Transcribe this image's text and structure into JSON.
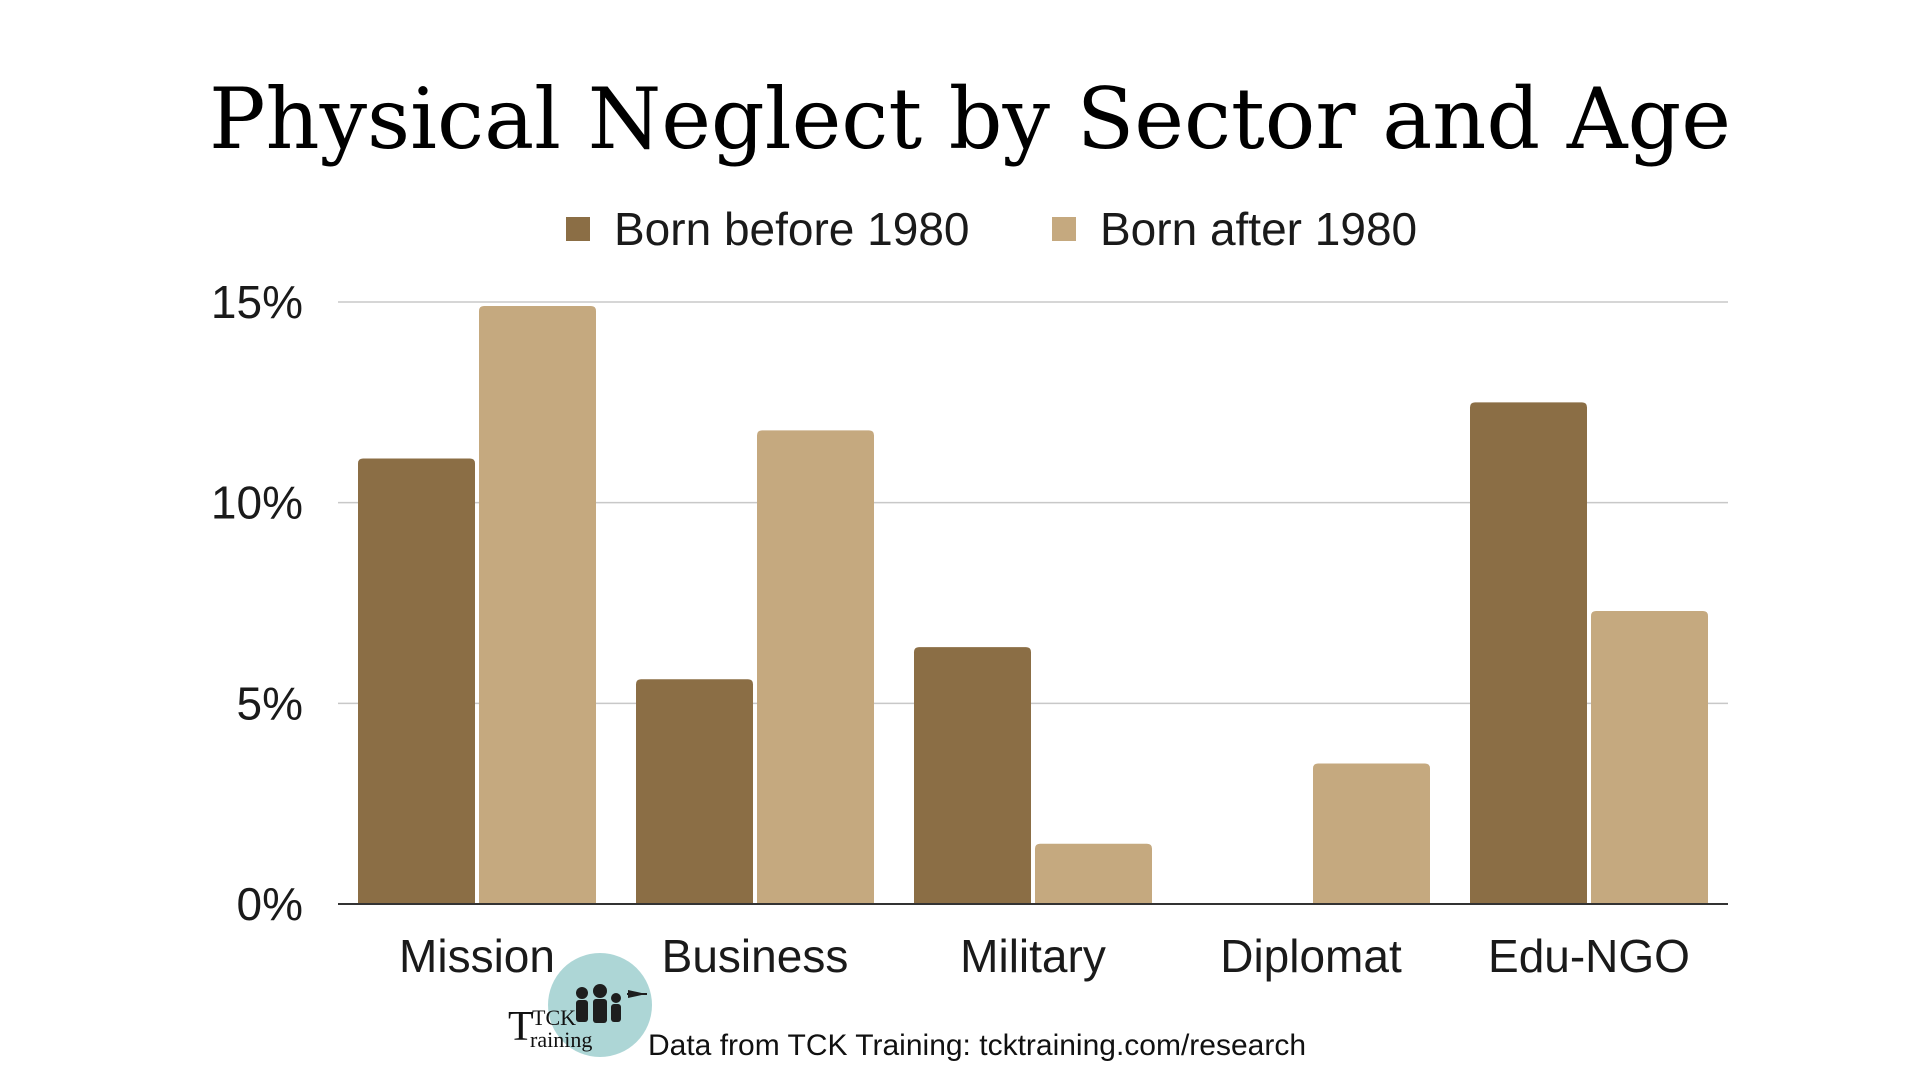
{
  "chart_data": {
    "type": "bar",
    "title": "Physical Neglect by Sector and Age",
    "categories": [
      "Mission",
      "Business",
      "Military",
      "Diplomat",
      "Edu-NGO"
    ],
    "series": [
      {
        "name": "Born before 1980",
        "color": "#8B6E45",
        "values": [
          11.1,
          5.6,
          6.4,
          0,
          12.5
        ]
      },
      {
        "name": "Born after 1980",
        "color": "#C5A97F",
        "values": [
          14.9,
          11.8,
          1.5,
          3.5,
          7.3
        ]
      }
    ],
    "ylim": [
      0,
      15
    ],
    "yticks": [
      "0%",
      "5%",
      "10%",
      "15%"
    ],
    "ytick_values": [
      0,
      5,
      10,
      15
    ],
    "xlabel": "",
    "ylabel": "",
    "grid": true,
    "legend_position": "top"
  },
  "footer": {
    "source": "Data from TCK Training: tcktraining.com/research",
    "logo_text_top": "TCK",
    "logo_text_bottom": "raining",
    "logo_initial": "T"
  }
}
